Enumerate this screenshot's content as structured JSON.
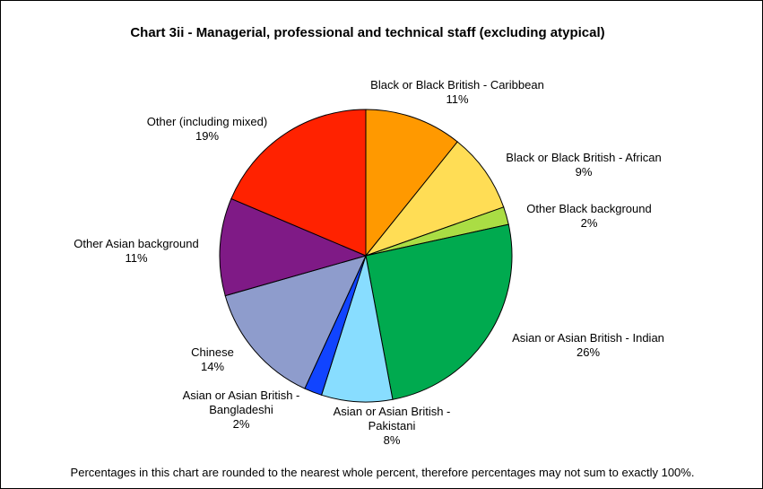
{
  "chart_data": {
    "type": "pie",
    "title": "Chart 3ii - Managerial, professional and technical staff (excluding atypical)",
    "footnote": "Percentages in this chart are rounded to the nearest whole percent, therefore percentages may not sum to exactly 100%.",
    "start_angle_deg": 0,
    "direction": "clockwise",
    "legend": "none",
    "slices": [
      {
        "label": "Black or Black British - Caribbean",
        "value": 11,
        "display": "11%",
        "color": "#FF9900"
      },
      {
        "label": "Black or Black British - African",
        "value": 9,
        "display": "9%",
        "color": "#FFDD55"
      },
      {
        "label": "Other Black background",
        "value": 2,
        "display": "2%",
        "color": "#AADD44"
      },
      {
        "label": "Asian or Asian British - Indian",
        "value": 26,
        "display": "26%",
        "color": "#00AA4F"
      },
      {
        "label": "Asian or Asian British - Pakistani",
        "value": 8,
        "display": "8%",
        "color": "#88DDFF"
      },
      {
        "label": "Asian or Asian British - Bangladeshi",
        "value": 2,
        "display": "2%",
        "color": "#1144FF"
      },
      {
        "label": "Chinese",
        "value": 14,
        "display": "14%",
        "color": "#8E9CCC"
      },
      {
        "label": "Other Asian background",
        "value": 11,
        "display": "11%",
        "color": "#7F1A86"
      },
      {
        "label": "Other (including mixed)",
        "value": 19,
        "display": "19%",
        "color": "#FF2200"
      }
    ]
  }
}
